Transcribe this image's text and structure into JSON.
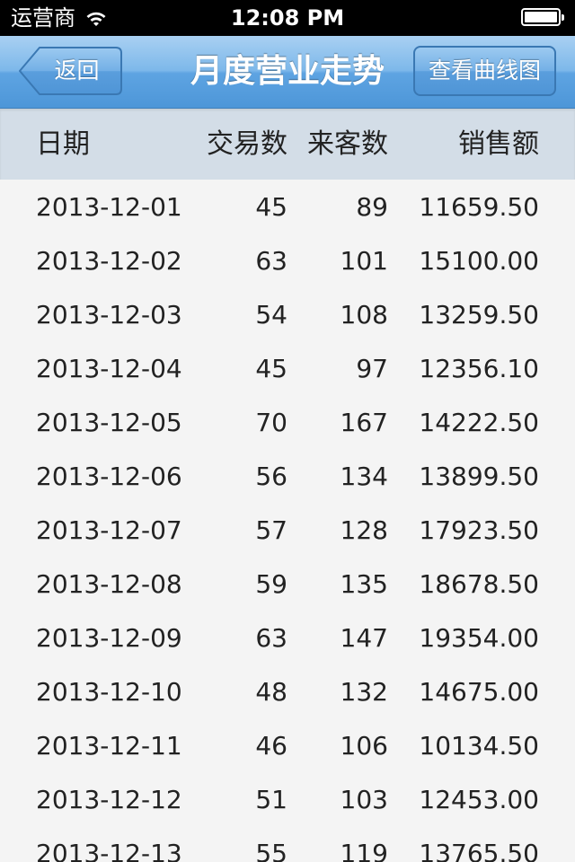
{
  "status_bar": {
    "carrier": "运营商",
    "time": "12:08 PM"
  },
  "nav": {
    "title": "月度营业走势",
    "back_label": "返回",
    "curve_label": "查看曲线图"
  },
  "table": {
    "headers": {
      "date": "日期",
      "transactions": "交易数",
      "visitors": "来客数",
      "sales": "销售额"
    },
    "rows": [
      {
        "date": "2013-12-01",
        "transactions": "45",
        "visitors": "89",
        "sales": "11659.50"
      },
      {
        "date": "2013-12-02",
        "transactions": "63",
        "visitors": "101",
        "sales": "15100.00"
      },
      {
        "date": "2013-12-03",
        "transactions": "54",
        "visitors": "108",
        "sales": "13259.50"
      },
      {
        "date": "2013-12-04",
        "transactions": "45",
        "visitors": "97",
        "sales": "12356.10"
      },
      {
        "date": "2013-12-05",
        "transactions": "70",
        "visitors": "167",
        "sales": "14222.50"
      },
      {
        "date": "2013-12-06",
        "transactions": "56",
        "visitors": "134",
        "sales": "13899.50"
      },
      {
        "date": "2013-12-07",
        "transactions": "57",
        "visitors": "128",
        "sales": "17923.50"
      },
      {
        "date": "2013-12-08",
        "transactions": "59",
        "visitors": "135",
        "sales": "18678.50"
      },
      {
        "date": "2013-12-09",
        "transactions": "63",
        "visitors": "147",
        "sales": "19354.00"
      },
      {
        "date": "2013-12-10",
        "transactions": "48",
        "visitors": "132",
        "sales": "14675.00"
      },
      {
        "date": "2013-12-11",
        "transactions": "46",
        "visitors": "106",
        "sales": "10134.50"
      },
      {
        "date": "2013-12-12",
        "transactions": "51",
        "visitors": "103",
        "sales": "12453.00"
      },
      {
        "date": "2013-12-13",
        "transactions": "55",
        "visitors": "119",
        "sales": "13765.50"
      }
    ]
  }
}
